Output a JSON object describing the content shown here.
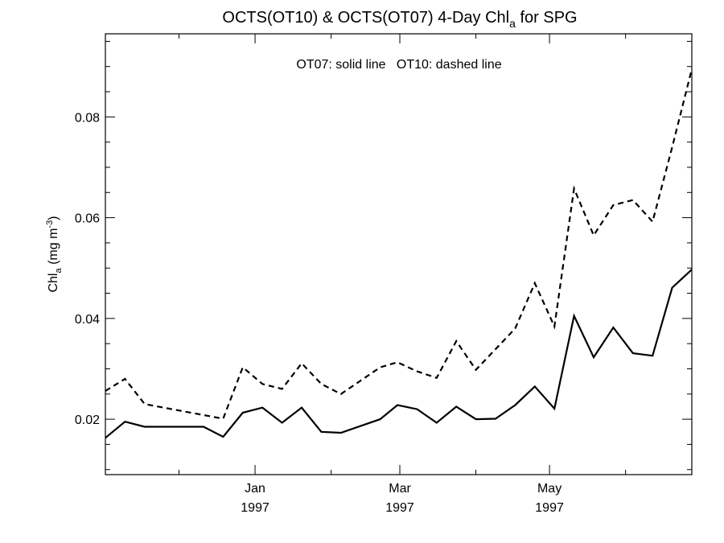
{
  "chart_data": {
    "type": "line",
    "title": {
      "main": "OCTS(OT10) & OCTS(OT07) 4-Day Chl",
      "sub": "a",
      "suffix": " for SPG"
    },
    "annotation": "OT07: solid line   OT10: dashed line",
    "ylabel": {
      "main": "Chl",
      "sub": "a",
      "rest": " (mg m",
      "sup": "-3",
      "close": ")"
    },
    "xlabel": "",
    "ylim": [
      0.009,
      0.0965
    ],
    "y_ticks": [
      0.02,
      0.04,
      0.06,
      0.08
    ],
    "y_tick_labels": [
      "0.02",
      "0.04",
      "0.06",
      "0.08"
    ],
    "xlim": [
      "1996-11-01",
      "1997-06-28"
    ],
    "x_ticks": [
      "1997-01-01",
      "1997-03-01",
      "1997-05-01"
    ],
    "x_tick_labels": [
      [
        "Jan",
        "1997"
      ],
      [
        "Mar",
        "1997"
      ],
      [
        "May",
        "1997"
      ]
    ],
    "grid": false,
    "legend": "none",
    "series": [
      {
        "name": "OT07",
        "style": "solid",
        "color": "#000000",
        "points": [
          [
            "1996-11-01",
            0.0163
          ],
          [
            "1996-11-09",
            0.0195
          ],
          [
            "1996-11-17",
            0.0185
          ],
          [
            "1996-11-25",
            0.0185
          ],
          [
            "1996-12-03",
            0.0185
          ],
          [
            "1996-12-11",
            0.0185
          ],
          [
            "1996-12-19",
            0.0165
          ],
          [
            "1996-12-27",
            0.0213
          ],
          [
            "1997-01-04",
            0.0223
          ],
          [
            "1997-01-12",
            0.0193
          ],
          [
            "1997-01-20",
            0.0223
          ],
          [
            "1997-01-28",
            0.0175
          ],
          [
            "1997-02-05",
            0.0173
          ],
          [
            "1997-02-21",
            0.02
          ],
          [
            "1997-02-28",
            0.0228
          ],
          [
            "1997-03-08",
            0.022
          ],
          [
            "1997-03-16",
            0.0193
          ],
          [
            "1997-03-24",
            0.0225
          ],
          [
            "1997-04-01",
            0.02
          ],
          [
            "1997-04-09",
            0.0201
          ],
          [
            "1997-04-17",
            0.0228
          ],
          [
            "1997-04-25",
            0.0265
          ],
          [
            "1997-05-03",
            0.0221
          ],
          [
            "1997-05-11",
            0.0405
          ],
          [
            "1997-05-19",
            0.0323
          ],
          [
            "1997-05-27",
            0.0382
          ],
          [
            "1997-06-04",
            0.0331
          ],
          [
            "1997-06-12",
            0.0326
          ],
          [
            "1997-06-20",
            0.0461
          ],
          [
            "1997-06-28",
            0.0497
          ]
        ]
      },
      {
        "name": "OT10",
        "style": "dashed",
        "color": "#000000",
        "points": [
          [
            "1996-11-01",
            0.0256
          ],
          [
            "1996-11-09",
            0.028
          ],
          [
            "1996-11-17",
            0.023
          ],
          [
            "1996-12-19",
            0.0201
          ],
          [
            "1996-12-27",
            0.0303
          ],
          [
            "1997-01-04",
            0.027
          ],
          [
            "1997-01-12",
            0.026
          ],
          [
            "1997-01-20",
            0.0311
          ],
          [
            "1997-01-28",
            0.027
          ],
          [
            "1997-02-05",
            0.025
          ],
          [
            "1997-02-21",
            0.0303
          ],
          [
            "1997-02-28",
            0.0313
          ],
          [
            "1997-03-08",
            0.0295
          ],
          [
            "1997-03-16",
            0.0282
          ],
          [
            "1997-03-24",
            0.0355
          ],
          [
            "1997-04-01",
            0.0298
          ],
          [
            "1997-04-17",
            0.038
          ],
          [
            "1997-04-25",
            0.047
          ],
          [
            "1997-05-03",
            0.0384
          ],
          [
            "1997-05-11",
            0.0658
          ],
          [
            "1997-05-19",
            0.0565
          ],
          [
            "1997-05-27",
            0.0625
          ],
          [
            "1997-06-04",
            0.0635
          ],
          [
            "1997-06-12",
            0.0592
          ],
          [
            "1997-06-20",
            0.074
          ],
          [
            "1997-06-28",
            0.0895
          ]
        ]
      }
    ]
  }
}
